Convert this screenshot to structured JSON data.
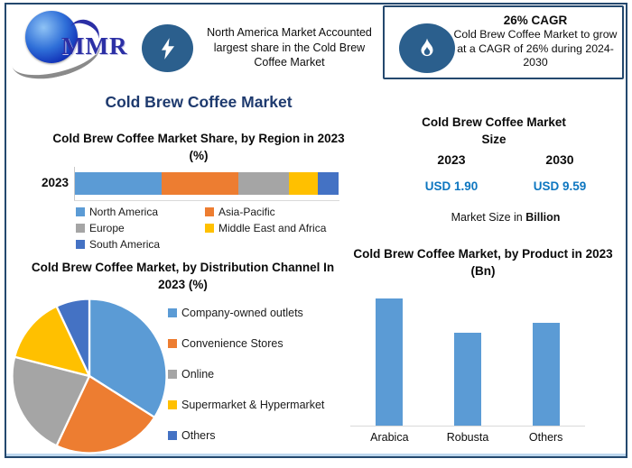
{
  "header": {
    "logo_text": "MMR",
    "highlight_text": "North America Market Accounted largest share in the Cold Brew Coffee Market",
    "cagr_title": "26% CAGR",
    "cagr_text": "Cold Brew Coffee Market to grow at a CAGR of 26% during 2024-2030"
  },
  "main_title": "Cold Brew Coffee Market",
  "market_size": {
    "title": "Cold Brew Coffee Market Size",
    "years": [
      "2023",
      "2030"
    ],
    "values": [
      "USD 1.90",
      "USD 9.59"
    ],
    "note_prefix": "Market Size in ",
    "note_bold": "Billion"
  },
  "colors": {
    "navy": "#1f3864",
    "icon_circle": "#2b5f8d",
    "value_blue": "#0d76c0"
  },
  "chart_data": [
    {
      "type": "bar",
      "subtype": "stacked-horizontal",
      "title": "Cold Brew Coffee Market Share, by Region in 2023 (%)",
      "categories": [
        "2023"
      ],
      "series": [
        {
          "name": "North America",
          "values": [
            33
          ],
          "color": "#5B9BD5"
        },
        {
          "name": "Asia-Pacific",
          "values": [
            29
          ],
          "color": "#ED7D31"
        },
        {
          "name": "Europe",
          "values": [
            19
          ],
          "color": "#A5A5A5"
        },
        {
          "name": "Middle East and Africa",
          "values": [
            11
          ],
          "color": "#FFC000"
        },
        {
          "name": "South America",
          "values": [
            8
          ],
          "color": "#4472C4"
        }
      ],
      "xlim": [
        0,
        100
      ],
      "legend_position": "bottom",
      "grid": false
    },
    {
      "type": "pie",
      "title": "Cold Brew Coffee Market, by Distribution Channel In 2023 (%)",
      "labels": [
        "Company-owned outlets",
        "Convenience Stores",
        "Online",
        "Supermarket & Hypermarket",
        "Others"
      ],
      "values": [
        34,
        23,
        22,
        14,
        7
      ],
      "colors": [
        "#5B9BD5",
        "#ED7D31",
        "#A5A5A5",
        "#FFC000",
        "#4472C4"
      ],
      "start_angle": 0,
      "legend_position": "right"
    },
    {
      "type": "bar",
      "title": "Cold Brew Coffee Market, by Product in 2023 (Bn)",
      "categories": [
        "Arabica",
        "Robusta",
        "Others"
      ],
      "values": [
        0.75,
        0.55,
        0.61
      ],
      "color": "#5B9BD5",
      "ylim": [
        0,
        0.8
      ],
      "grid": false
    }
  ]
}
